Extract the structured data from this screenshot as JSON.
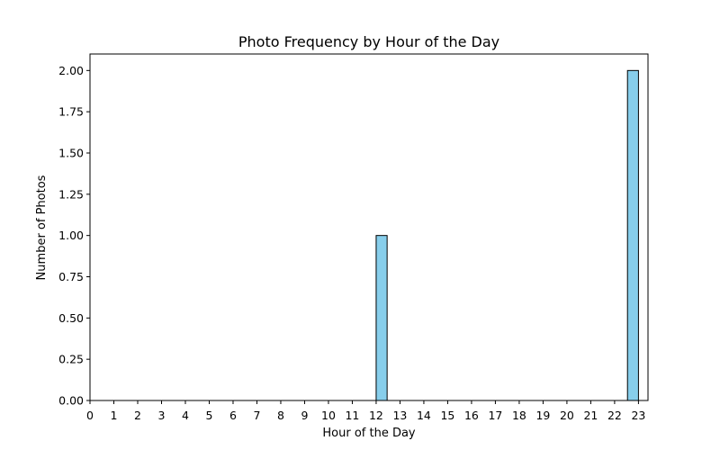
{
  "chart_data": {
    "type": "bar",
    "title": "Photo Frequency by Hour of the Day",
    "xlabel": "Hour of the Day",
    "ylabel": "Number of Photos",
    "x_ticks": [
      "0",
      "1",
      "2",
      "3",
      "4",
      "5",
      "6",
      "7",
      "8",
      "9",
      "10",
      "11",
      "12",
      "13",
      "14",
      "15",
      "16",
      "17",
      "18",
      "19",
      "20",
      "21",
      "22",
      "23"
    ],
    "y_ticks": [
      "0.00",
      "0.25",
      "0.50",
      "0.75",
      "1.00",
      "1.25",
      "1.50",
      "1.75",
      "2.00"
    ],
    "bars": [
      {
        "x_start": 12.0,
        "x_end": 12.46,
        "value": 1
      },
      {
        "x_start": 22.54,
        "x_end": 23.0,
        "value": 2
      }
    ],
    "xlim": [
      0,
      23.4
    ],
    "ylim": [
      0,
      2.1
    ],
    "grid": false,
    "colors": {
      "bar_fill": "#87ceeb",
      "bar_edge": "#000000"
    }
  }
}
